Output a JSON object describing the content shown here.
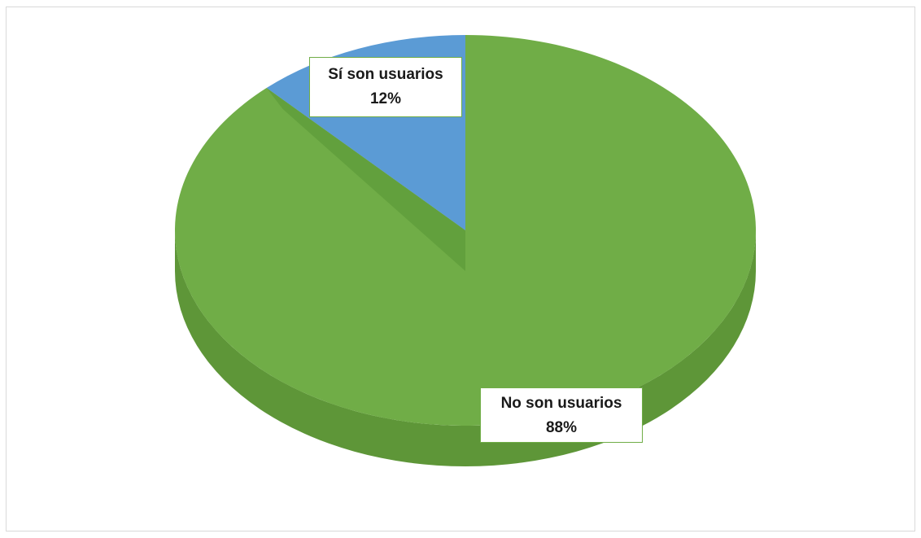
{
  "chart_data": {
    "type": "pie",
    "style": "3d",
    "categories": [
      "Sí son usuarios",
      "No son usuarios"
    ],
    "values": [
      12,
      88
    ],
    "unit": "%",
    "data_labels": [
      {
        "category": "Sí son usuarios",
        "value": "12%"
      },
      {
        "category": "No son usuarios",
        "value": "88%"
      }
    ],
    "colors": {
      "Sí son usuarios": "#5b9bd5",
      "No son usuarios": "#70ad47"
    },
    "legend": "none"
  }
}
